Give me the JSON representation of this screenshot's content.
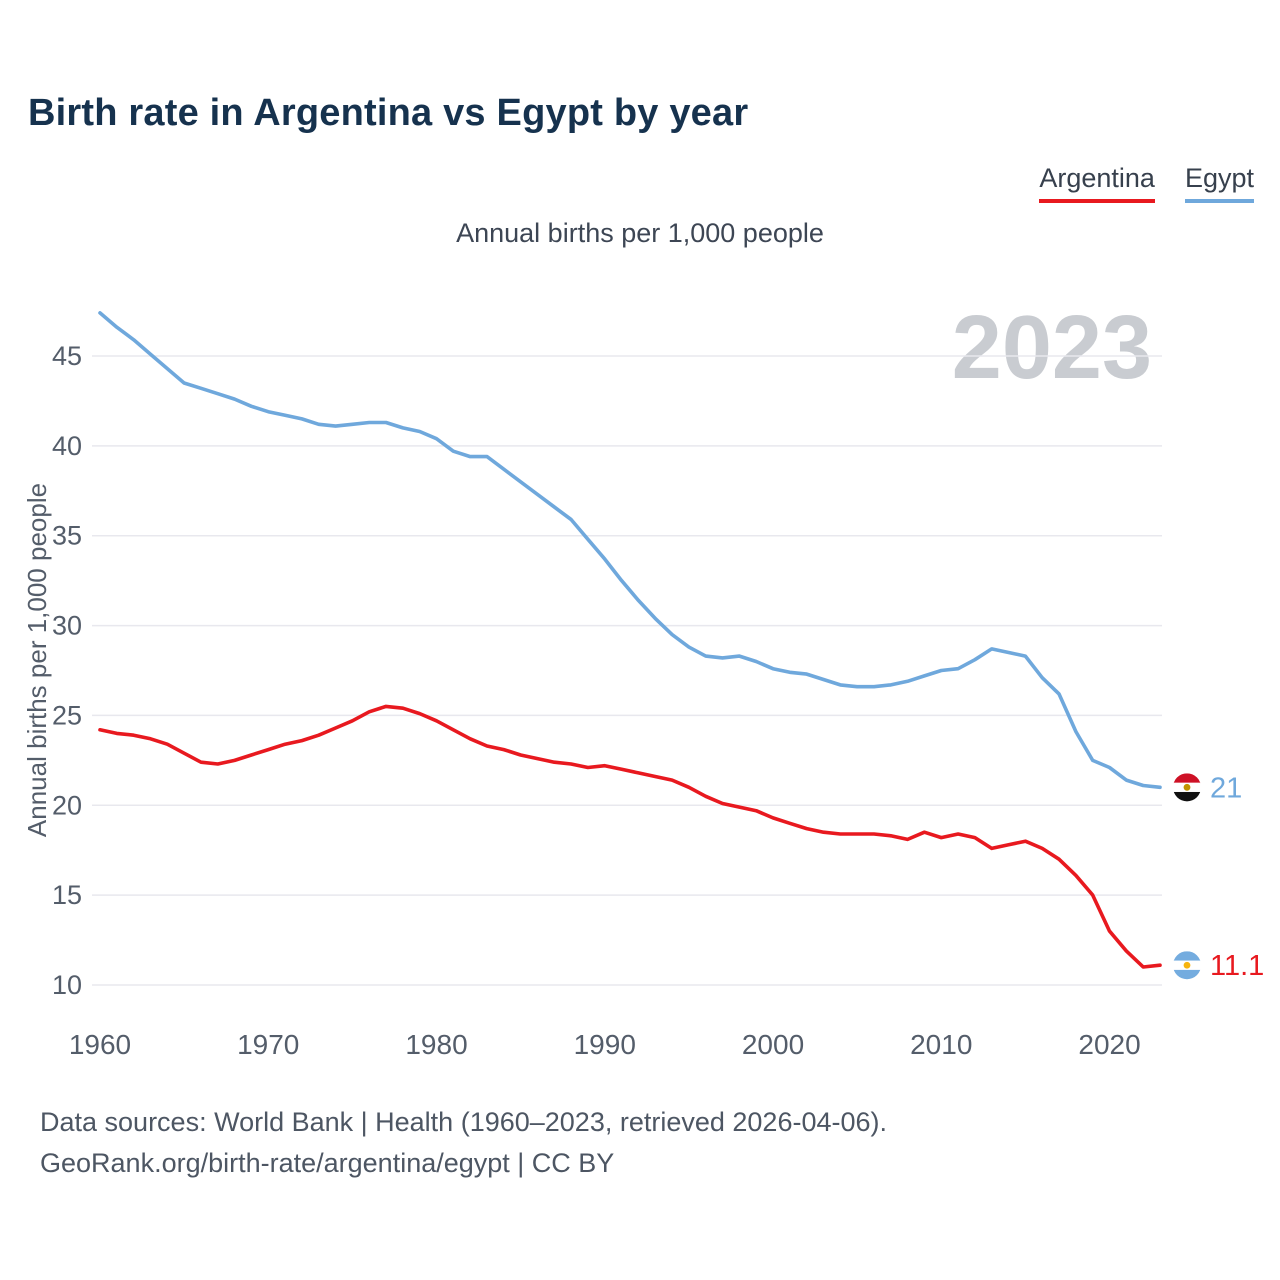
{
  "header": {
    "title": "Birth rate in Argentina vs Egypt by year"
  },
  "legend": {
    "items": [
      {
        "label": "Argentina",
        "color": "#e8191f"
      },
      {
        "label": "Egypt",
        "color": "#6fa8dc"
      }
    ]
  },
  "footer": {
    "line1": "Data sources: World Bank | Health (1960–2023, retrieved 2026-04-06).",
    "line2": "GeoRank.org/birth-rate/argentina/egypt | CC BY"
  },
  "chart_data": {
    "type": "line",
    "title": "Birth rate in Argentina vs Egypt by year",
    "subtitle": "Annual births per 1,000 people",
    "ylabel": "Annual births per 1,000 people",
    "xlabel": "",
    "watermark": "2023",
    "grid": "horizontal",
    "legend_position": "top-right",
    "xticks": [
      1960,
      1970,
      1980,
      1990,
      2000,
      2010,
      2020
    ],
    "yticks": [
      10,
      15,
      20,
      25,
      30,
      35,
      40,
      45
    ],
    "ylim": [
      9,
      48.5
    ],
    "x": [
      1960,
      1961,
      1962,
      1963,
      1964,
      1965,
      1966,
      1967,
      1968,
      1969,
      1970,
      1971,
      1972,
      1973,
      1974,
      1975,
      1976,
      1977,
      1978,
      1979,
      1980,
      1981,
      1982,
      1983,
      1984,
      1985,
      1986,
      1987,
      1988,
      1989,
      1990,
      1991,
      1992,
      1993,
      1994,
      1995,
      1996,
      1997,
      1998,
      1999,
      2000,
      2001,
      2002,
      2003,
      2004,
      2005,
      2006,
      2007,
      2008,
      2009,
      2010,
      2011,
      2012,
      2013,
      2014,
      2015,
      2016,
      2017,
      2018,
      2019,
      2020,
      2021,
      2022,
      2023
    ],
    "series": [
      {
        "name": "Argentina",
        "flag": "argentina",
        "color": "#e8191f",
        "end_label": "11.1",
        "values": [
          24.2,
          24.0,
          23.9,
          23.7,
          23.4,
          22.9,
          22.4,
          22.3,
          22.5,
          22.8,
          23.1,
          23.4,
          23.6,
          23.9,
          24.3,
          24.7,
          25.2,
          25.5,
          25.4,
          25.1,
          24.7,
          24.2,
          23.7,
          23.3,
          23.1,
          22.8,
          22.6,
          22.4,
          22.3,
          22.1,
          22.2,
          22.0,
          21.8,
          21.6,
          21.4,
          21.0,
          20.5,
          20.1,
          19.9,
          19.7,
          19.3,
          19.0,
          18.7,
          18.5,
          18.4,
          18.4,
          18.4,
          18.3,
          18.1,
          18.5,
          18.2,
          18.4,
          18.2,
          17.6,
          17.8,
          18.0,
          17.6,
          17.0,
          16.1,
          15.0,
          13.0,
          11.9,
          11.0,
          11.1
        ]
      },
      {
        "name": "Egypt",
        "flag": "egypt",
        "color": "#6fa8dc",
        "end_label": "21",
        "values": [
          47.4,
          46.6,
          45.9,
          45.1,
          44.3,
          43.5,
          43.2,
          42.9,
          42.6,
          42.2,
          41.9,
          41.7,
          41.5,
          41.2,
          41.1,
          41.2,
          41.3,
          41.3,
          41.0,
          40.8,
          40.4,
          39.7,
          39.4,
          39.4,
          38.7,
          38.0,
          37.3,
          36.6,
          35.9,
          34.8,
          33.7,
          32.5,
          31.4,
          30.4,
          29.5,
          28.8,
          28.3,
          28.2,
          28.3,
          28.0,
          27.6,
          27.4,
          27.3,
          27.0,
          26.7,
          26.6,
          26.6,
          26.7,
          26.9,
          27.2,
          27.5,
          27.6,
          28.1,
          28.7,
          28.5,
          28.3,
          27.1,
          26.2,
          24.1,
          22.5,
          22.1,
          21.4,
          21.1,
          21.0
        ]
      }
    ]
  }
}
